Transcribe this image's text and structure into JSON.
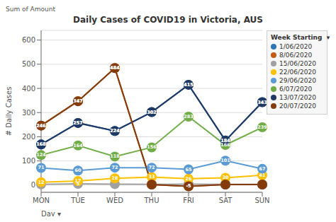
{
  "chart_data": {
    "type": "line",
    "title": "Daily Cases of COVID19 in Victoria, AUS",
    "subtitle": "Sum of Amount",
    "xlabel": "Day ▾",
    "ylabel": "# Daily Cases",
    "categories": [
      "MON",
      "TUE",
      "WED",
      "THU",
      "FRI",
      "SAT",
      "SUN"
    ],
    "series": [
      {
        "name": "1/06/2020",
        "color": "#2e75b6",
        "values": [
          168,
          257,
          224,
          302,
          415,
          184,
          343
        ],
        "value_labels": [
          "168",
          "257",
          "224",
          "302",
          "415",
          "184",
          "343"
        ]
      },
      {
        "name": "8/06/2020",
        "color": "#c55a11",
        "values": [
          246,
          347,
          484,
          2,
          -5,
          2,
          2
        ],
        "value_labels": [
          "246",
          "347",
          "484",
          null,
          "-5",
          null,
          null
        ]
      },
      {
        "name": "15/06/2020",
        "color": "#a0a0a0",
        "values": [
          3,
          5,
          4,
          3,
          4,
          3,
          3
        ],
        "value_labels": [
          null,
          "5",
          null,
          null,
          null,
          null,
          null
        ]
      },
      {
        "name": "22/06/2020",
        "color": "#ffc000",
        "values": [
          12,
          17,
          28,
          33,
          26,
          30,
          41
        ],
        "value_labels": [
          "12",
          "17",
          "28",
          "33",
          "26",
          "30",
          "41"
        ]
      },
      {
        "name": "29/06/2020",
        "color": "#5b9bd5",
        "values": [
          71,
          60,
          72,
          72,
          65,
          101,
          67
        ],
        "value_labels": [
          "71",
          "60",
          "72",
          "72",
          "65",
          "101",
          "67"
        ]
      },
      {
        "name": "6/07/2020",
        "color": "#70ad47",
        "values": [
          124,
          164,
          118,
          156,
          283,
          166,
          239
        ],
        "value_labels": [
          "124",
          "164",
          "118",
          "156",
          "283",
          "166",
          "239"
        ]
      },
      {
        "name": "13/07/2020",
        "color": "#1f3864",
        "values": [
          168,
          257,
          224,
          302,
          415,
          184,
          343
        ],
        "value_labels": [
          "168",
          "257",
          "224",
          "302",
          "415",
          "184",
          "343"
        ]
      },
      {
        "name": "20/07/2020",
        "color": "#843c0c",
        "values": [
          246,
          347,
          484,
          2,
          -5,
          2,
          2
        ],
        "value_labels": [
          "246",
          "347",
          "484",
          null,
          "-5",
          null,
          null
        ]
      }
    ],
    "ylim": [
      -30,
      640
    ],
    "yticks": [
      0,
      100,
      200,
      300,
      400,
      500,
      600
    ],
    "grid": true,
    "legend": "upper right",
    "legend_title": "Week Starting  ▾",
    "data_labels": true,
    "marker": "circle"
  }
}
